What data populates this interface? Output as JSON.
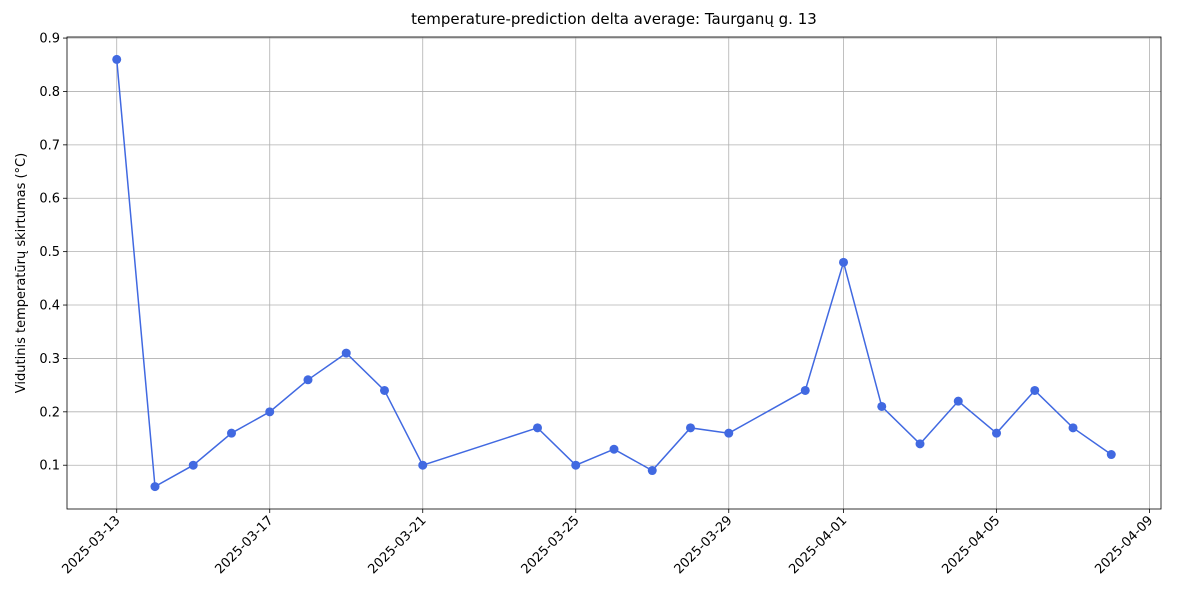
{
  "chart_data": {
    "type": "line",
    "title": "temperature-prediction delta average: Taurganų g. 13",
    "y_label": "Vidutinis temperatūrų skirtumas (°C)",
    "x": [
      "2025-03-13",
      "2025-03-14",
      "2025-03-15",
      "2025-03-16",
      "2025-03-17",
      "2025-03-18",
      "2025-03-19",
      "2025-03-20",
      "2025-03-21",
      "2025-03-24",
      "2025-03-25",
      "2025-03-26",
      "2025-03-27",
      "2025-03-28",
      "2025-03-29",
      "2025-03-31",
      "2025-04-01",
      "2025-04-02",
      "2025-04-03",
      "2025-04-04",
      "2025-04-05",
      "2025-04-06",
      "2025-04-07",
      "2025-04-08"
    ],
    "series": [
      {
        "color": "#4169e1",
        "values": [
          0.86,
          0.06,
          0.1,
          0.16,
          0.2,
          0.26,
          0.31,
          0.24,
          0.1,
          0.17,
          0.1,
          0.13,
          0.09,
          0.17,
          0.16,
          0.24,
          0.48,
          0.21,
          0.14,
          0.22,
          0.16,
          0.24,
          0.17,
          0.12
        ]
      }
    ],
    "xlim": [
      "2025-03-11T16:48Z",
      "2025-04-09T07:12Z"
    ],
    "xticks": [
      "2025-03-13",
      "2025-03-17",
      "2025-03-21",
      "2025-03-25",
      "2025-03-29",
      "2025-04-01",
      "2025-04-05",
      "2025-04-09"
    ],
    "ylim": [
      0.018,
      0.902
    ],
    "yticks": [
      0.1,
      0.2,
      0.3,
      0.4,
      0.5,
      0.6,
      0.7,
      0.8,
      0.9
    ],
    "grid": true
  }
}
